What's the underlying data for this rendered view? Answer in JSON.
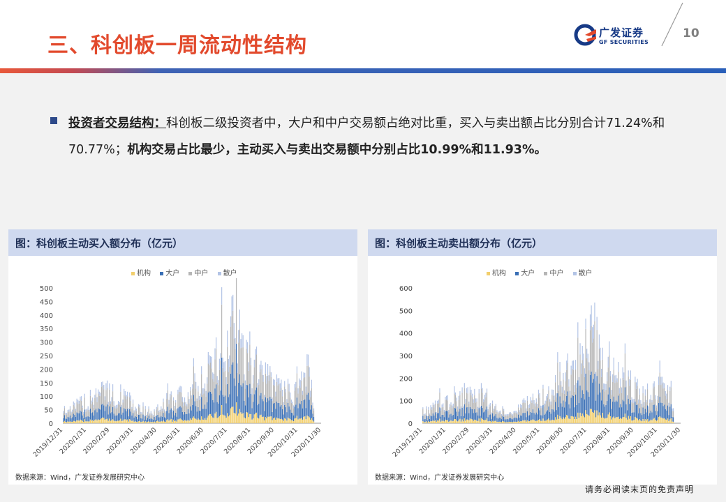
{
  "header": {
    "title": "三、科创板一周流动性结构",
    "logo_cn": "广发证券",
    "logo_en": "GF SECURITIES",
    "page_number": "10"
  },
  "body": {
    "lead": "投资者交易结构：",
    "text1": "科创板二级投资者中，大户和中户交易额占绝对比重，买入与卖出额占比分别合计71.24%和70.77%；",
    "text2": "机构交易占比最少，主动买入与卖出交易额中分别占比10.99%和11.93%。"
  },
  "colors": {
    "机构": "#f2cf6d",
    "大户": "#3a6fb5",
    "中户": "#b6b6b6",
    "散户": "#b3c4e6"
  },
  "charts": [
    {
      "panel_title": "图：科创板主动买入额分布（亿元）",
      "source": "数据来源：Wind，广发证券发展研究中心"
    },
    {
      "panel_title": "图：科创板主动卖出额分布（亿元）",
      "source": "数据来源：Wind，广发证券发展研究中心"
    }
  ],
  "chart_data": [
    {
      "type": "bar",
      "stacked": true,
      "series_names": [
        "机构",
        "大户",
        "中户",
        "散户"
      ],
      "ylim": [
        0,
        500
      ],
      "yticks": [
        0,
        50,
        100,
        150,
        200,
        250,
        300,
        350,
        400,
        450,
        500
      ],
      "x_ticks": [
        "2019/12/31",
        "2020/1/31",
        "2020/2/29",
        "2020/3/31",
        "2020/4/30",
        "2020/5/31",
        "2020/6/30",
        "2020/7/31",
        "2020/8/31",
        "2020/9/30",
        "2020/10/31",
        "2020/11/30"
      ],
      "totals_profile": [
        [
          0,
          55
        ],
        [
          1,
          95
        ],
        [
          1.4,
          140
        ],
        [
          2,
          130
        ],
        [
          2.7,
          120
        ],
        [
          3,
          70
        ],
        [
          3.5,
          55
        ],
        [
          4,
          58
        ],
        [
          4.5,
          95
        ],
        [
          5,
          130
        ],
        [
          5.5,
          145
        ],
        [
          6,
          200
        ],
        [
          6.5,
          290
        ],
        [
          7,
          360
        ],
        [
          7.3,
          450
        ],
        [
          7.6,
          300
        ],
        [
          8,
          260
        ],
        [
          8.5,
          210
        ],
        [
          9,
          160
        ],
        [
          9.5,
          140
        ],
        [
          10,
          150
        ],
        [
          10.4,
          245
        ],
        [
          10.7,
          70
        ]
      ]
    },
    {
      "type": "bar",
      "stacked": true,
      "series_names": [
        "机构",
        "大户",
        "中户",
        "散户"
      ],
      "ylim": [
        0,
        600
      ],
      "yticks": [
        0,
        100,
        200,
        300,
        400,
        500,
        600
      ],
      "x_ticks": [
        "2019/12/31",
        "2020/1/31",
        "2020/2/29",
        "2020/3/31",
        "2020/4/30",
        "2020/5/31",
        "2020/6/30",
        "2020/7/31",
        "2020/8/31",
        "2020/9/30",
        "2020/10/31",
        "2020/11/30"
      ],
      "totals_profile": [
        [
          0,
          60
        ],
        [
          1,
          110
        ],
        [
          1.4,
          165
        ],
        [
          2,
          150
        ],
        [
          2.7,
          135
        ],
        [
          3,
          80
        ],
        [
          3.5,
          60
        ],
        [
          4,
          65
        ],
        [
          4.5,
          110
        ],
        [
          5,
          150
        ],
        [
          5.5,
          165
        ],
        [
          6,
          230
        ],
        [
          6.5,
          330
        ],
        [
          7,
          420
        ],
        [
          7.3,
          520
        ],
        [
          7.6,
          340
        ],
        [
          8,
          300
        ],
        [
          8.5,
          240
        ],
        [
          9,
          180
        ],
        [
          9.5,
          155
        ],
        [
          10,
          170
        ],
        [
          10.4,
          210
        ],
        [
          10.7,
          70
        ]
      ]
    }
  ],
  "footer": "请务必阅读末页的免责声明"
}
